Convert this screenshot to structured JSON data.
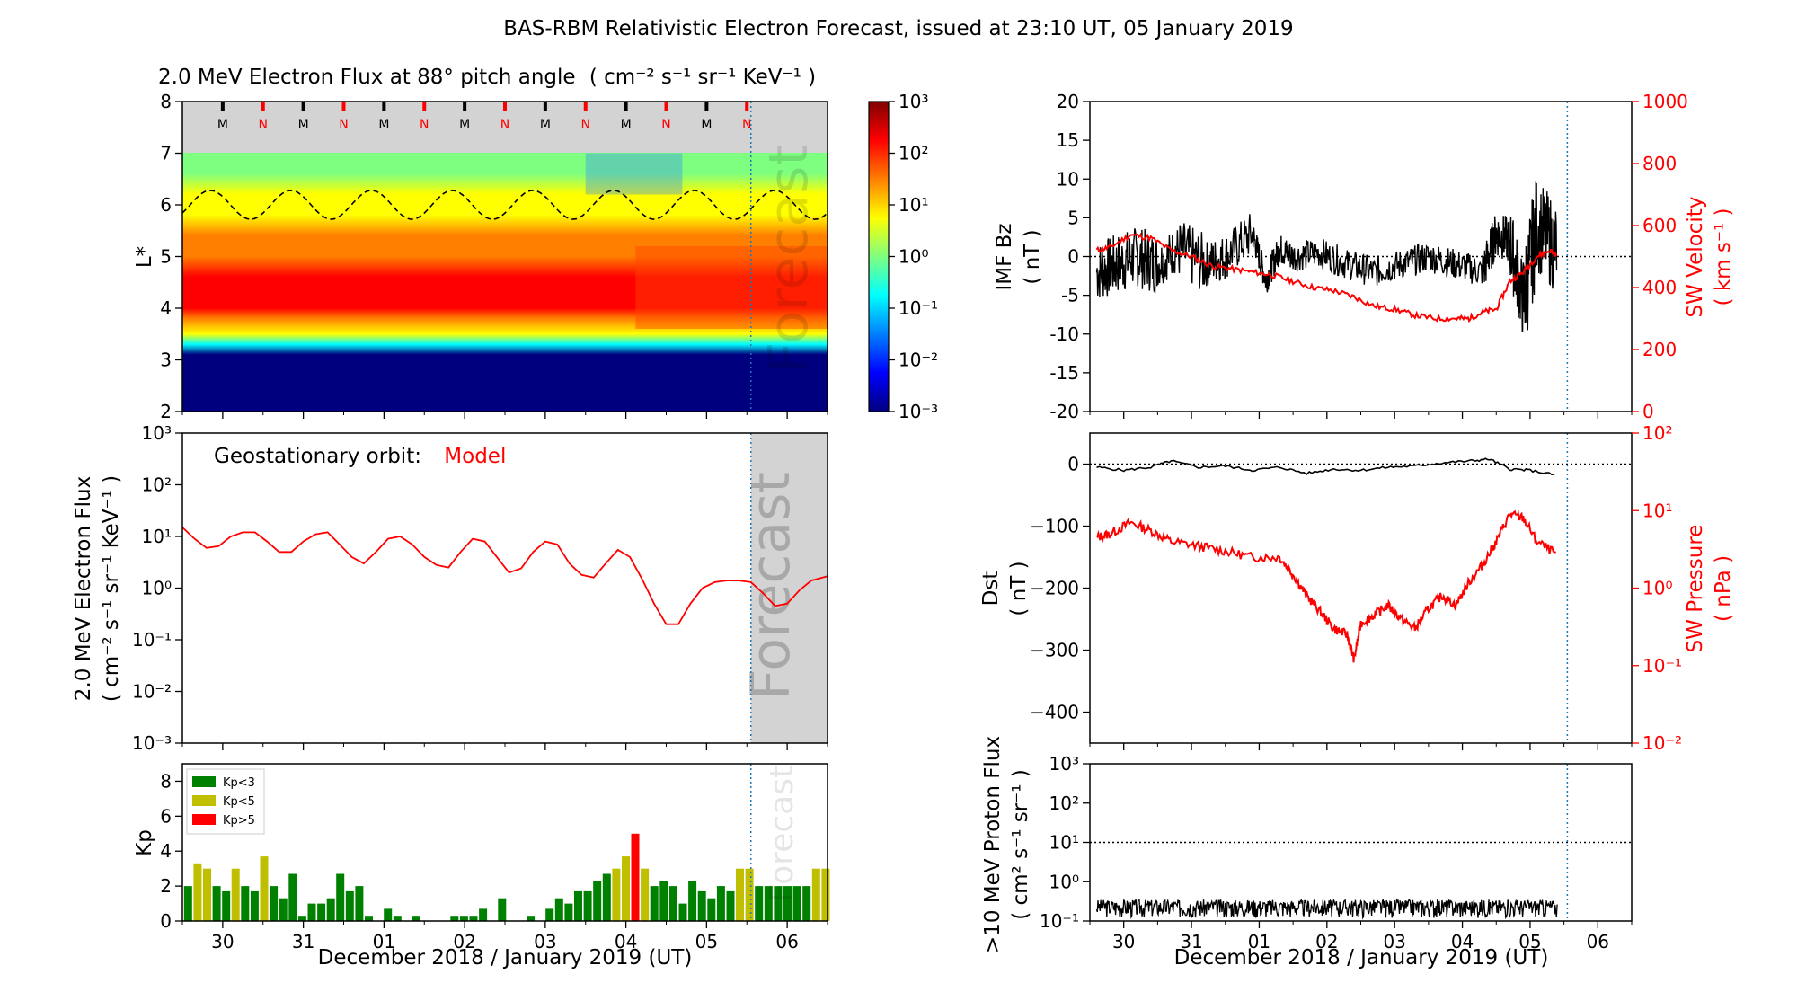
{
  "suptitle": "BAS-RBM Relativistic Electron Forecast, issued at 23:10 UT, 05 January 2019",
  "chart_data": [
    {
      "id": "flux-heatmap",
      "type": "heatmap",
      "title": "2.0 MeV Electron Flux at 88° pitch angle",
      "title_units": "( cm⁻² s⁻¹ sr⁻¹ KeV⁻¹ )",
      "ylabel": "L*",
      "ylim": [
        2,
        8
      ],
      "yticks": [
        2,
        3,
        4,
        5,
        6,
        7,
        8
      ],
      "xlim_days": [
        0,
        8
      ],
      "forecast_day": 7.05,
      "overlay_text": "Forecast",
      "orbit_marks": [
        {
          "label": "M",
          "color": "#000000",
          "day": 0.5
        },
        {
          "label": "N",
          "color": "#ff0000",
          "day": 1.0
        },
        {
          "label": "M",
          "color": "#000000",
          "day": 1.5
        },
        {
          "label": "N",
          "color": "#ff0000",
          "day": 2.0
        },
        {
          "label": "M",
          "color": "#000000",
          "day": 2.5
        },
        {
          "label": "N",
          "color": "#ff0000",
          "day": 3.0
        },
        {
          "label": "M",
          "color": "#000000",
          "day": 3.5
        },
        {
          "label": "N",
          "color": "#ff0000",
          "day": 4.0
        },
        {
          "label": "M",
          "color": "#000000",
          "day": 4.5
        },
        {
          "label": "N",
          "color": "#ff0000",
          "day": 5.0
        },
        {
          "label": "M",
          "color": "#000000",
          "day": 5.5
        },
        {
          "label": "N",
          "color": "#ff0000",
          "day": 6.0
        },
        {
          "label": "M",
          "color": "#000000",
          "day": 6.5
        },
        {
          "label": "N",
          "color": "#ff0000",
          "day": 7.0
        }
      ],
      "dashed_line": {
        "mean_L": 6.0,
        "amplitude_L": 0.28,
        "period_days": 1.0
      },
      "colorbar": {
        "type": "log",
        "range": [
          -3,
          3
        ],
        "ticks": [
          "10⁻³",
          "10⁻²",
          "10⁻¹",
          "10⁰",
          "10¹",
          "10²",
          "10³"
        ],
        "stops": [
          "#00007f",
          "#0000ff",
          "#007fff",
          "#00ffff",
          "#7fff7f",
          "#ffff00",
          "#ff7f00",
          "#ff0000",
          "#7f0000"
        ]
      }
    },
    {
      "id": "geo-flux",
      "type": "line",
      "annotation": "Geostationary orbit:",
      "annotation_model": "Model",
      "ylabel": "2.0 MeV Electron Flux",
      "ylabel_units": "( cm⁻² s⁻¹ sr⁻¹ KeV⁻¹ )",
      "yscale": "log",
      "ylim": [
        0.001,
        1000
      ],
      "yticks": [
        "10⁻³",
        "10⁻²",
        "10⁻¹",
        "10⁰",
        "10¹",
        "10²",
        "10³"
      ],
      "xlim_days": [
        0,
        8
      ],
      "forecast_day": 7.05,
      "overlay_text": "Forecast",
      "series": [
        {
          "color": "#ff0000",
          "x": [
            0,
            0.15,
            0.3,
            0.45,
            0.6,
            0.75,
            0.9,
            1.05,
            1.2,
            1.35,
            1.5,
            1.65,
            1.8,
            1.95,
            2.1,
            2.25,
            2.4,
            2.55,
            2.7,
            2.85,
            3.0,
            3.15,
            3.3,
            3.45,
            3.6,
            3.75,
            3.9,
            4.05,
            4.2,
            4.35,
            4.5,
            4.65,
            4.8,
            4.95,
            5.1,
            5.25,
            5.4,
            5.55,
            5.7,
            5.85,
            6.0,
            6.15,
            6.3,
            6.45,
            6.6,
            6.75,
            6.9,
            7.05,
            7.2,
            7.35,
            7.5,
            7.65,
            7.8,
            8.0
          ],
          "y": [
            15,
            9,
            6,
            6.5,
            10,
            12,
            12,
            8,
            5,
            5,
            8,
            11,
            12,
            7,
            4,
            3,
            5,
            9,
            10,
            7,
            4,
            2.8,
            2.5,
            5,
            9,
            8,
            4,
            2,
            2.4,
            5,
            8,
            7,
            3,
            1.8,
            1.6,
            3,
            5.5,
            4,
            1.5,
            0.5,
            0.2,
            0.2,
            0.5,
            1.0,
            1.3,
            1.4,
            1.4,
            1.3,
            0.8,
            0.45,
            0.5,
            0.9,
            1.4,
            1.7
          ]
        }
      ]
    },
    {
      "id": "kp",
      "type": "bar",
      "ylabel": "Kp",
      "ylim": [
        0,
        9
      ],
      "yticks": [
        0,
        2,
        4,
        6,
        8
      ],
      "xlim_days": [
        0,
        8
      ],
      "forecast_day": 7.05,
      "overlay_text": "Forecast",
      "bar_width_days": 0.1,
      "legend": {
        "placement": "upper-left",
        "entries": [
          {
            "label": "Kp<3",
            "color": "#008000"
          },
          {
            "label": "Kp<5",
            "color": "#bfbf00"
          },
          {
            "label": "Kp>5",
            "color": "#ff0000"
          }
        ]
      },
      "values": [
        2,
        3.3,
        3,
        2,
        1.7,
        3,
        2,
        1.7,
        3.7,
        2,
        1.3,
        2.7,
        0.3,
        1,
        1,
        1.3,
        2.7,
        1.7,
        2,
        0.3,
        0,
        0.7,
        0.3,
        0,
        0.3,
        0,
        0,
        0,
        0.3,
        0.3,
        0.3,
        0.7,
        0,
        1.3,
        0,
        0,
        0.3,
        0,
        0.7,
        1.3,
        1,
        1.7,
        1.7,
        2.3,
        2.7,
        3,
        3.7,
        5,
        3,
        2,
        2.3,
        2,
        1,
        2.3,
        1.7,
        1.3,
        2,
        1.7,
        3,
        3,
        2,
        2,
        2,
        2,
        2,
        2,
        3,
        3
      ],
      "forecast_start_index": 56
    },
    {
      "id": "imf-sw",
      "type": "line",
      "ylabel": "IMF Bz",
      "ylabel_units": "( nT )",
      "ylim": [
        -20,
        20
      ],
      "yticks": [
        -20,
        -15,
        -10,
        -5,
        0,
        5,
        10,
        15,
        20
      ],
      "y2label": "SW Velocity",
      "y2label_units": "( km s⁻¹ )",
      "y2lim": [
        0,
        1000
      ],
      "y2ticks": [
        0,
        200,
        400,
        600,
        800,
        1000
      ],
      "xlim_days": [
        0,
        8
      ],
      "forecast_day": 7.05,
      "data_end_day": 6.9,
      "series": [
        {
          "axis": "left",
          "color": "#000000",
          "x": [
            0.1,
            0.4,
            0.7,
            1.0,
            1.3,
            1.7,
            2.0,
            2.4,
            2.6,
            2.8,
            3.0,
            3.4,
            3.8,
            4.2,
            4.6,
            5.0,
            5.4,
            5.8,
            6.0,
            6.2,
            6.4,
            6.6,
            6.9
          ],
          "y": [
            -2,
            -1,
            0,
            -1,
            1,
            -1,
            0,
            3,
            -3,
            1,
            0,
            0.5,
            -1,
            -2,
            -1,
            0,
            -1,
            -2,
            3,
            2,
            -6,
            4,
            1
          ],
          "noise_amplitude": [
            4,
            4,
            4,
            3,
            4,
            3,
            3,
            2,
            2,
            2,
            2,
            2,
            2,
            2,
            2,
            2,
            2,
            3,
            3,
            5,
            7,
            6,
            3
          ]
        },
        {
          "axis": "right",
          "color": "#ff0000",
          "x": [
            0.1,
            0.3,
            0.6,
            0.9,
            1.2,
            1.5,
            1.8,
            2.1,
            2.4,
            2.7,
            3.0,
            3.3,
            3.6,
            3.9,
            4.2,
            4.5,
            4.8,
            5.1,
            5.4,
            5.6,
            5.8,
            6.0,
            6.2,
            6.4,
            6.6,
            6.8,
            6.9
          ],
          "y": [
            520,
            530,
            570,
            560,
            520,
            500,
            470,
            460,
            450,
            440,
            420,
            400,
            390,
            370,
            340,
            330,
            310,
            300,
            300,
            300,
            320,
            330,
            420,
            450,
            500,
            520,
            500
          ]
        }
      ]
    },
    {
      "id": "dst-swp",
      "type": "line",
      "ylabel": "Dst",
      "ylabel_units": "( nT )",
      "ylim": [
        -450,
        50
      ],
      "yticks": [
        -400,
        -300,
        -200,
        -100,
        0
      ],
      "y2label": "SW Pressure",
      "y2label_units": "( nPa )",
      "y2scale": "log",
      "y2lim": [
        0.01,
        100
      ],
      "y2ticks": [
        "10⁻²",
        "10⁻¹",
        "10⁰",
        "10¹",
        "10²"
      ],
      "xlim_days": [
        0,
        8
      ],
      "forecast_day": 7.05,
      "series": [
        {
          "axis": "left",
          "color": "#000000",
          "x": [
            0.1,
            0.5,
            0.9,
            1.2,
            1.6,
            2.0,
            2.4,
            2.8,
            3.2,
            3.6,
            4.0,
            4.4,
            4.8,
            5.2,
            5.6,
            5.9,
            6.2,
            6.5,
            6.9
          ],
          "y": [
            -5,
            -10,
            -5,
            5,
            -5,
            -3,
            -10,
            -5,
            -15,
            -8,
            -10,
            -5,
            -3,
            2,
            5,
            8,
            -8,
            -10,
            -18
          ]
        },
        {
          "axis": "right",
          "color": "#ff0000",
          "x": [
            0.1,
            0.3,
            0.6,
            0.9,
            1.2,
            1.6,
            2.0,
            2.4,
            2.8,
            3.0,
            3.2,
            3.4,
            3.6,
            3.8,
            3.9,
            4.0,
            4.2,
            4.4,
            4.6,
            4.8,
            5.0,
            5.2,
            5.4,
            5.6,
            5.8,
            6.0,
            6.2,
            6.4,
            6.6,
            6.9
          ],
          "y": [
            4.5,
            5,
            7,
            5.5,
            4,
            3.5,
            3,
            2.5,
            2.5,
            1.5,
            0.8,
            0.5,
            0.3,
            0.25,
            0.12,
            0.35,
            0.45,
            0.6,
            0.4,
            0.3,
            0.55,
            0.8,
            0.6,
            1.2,
            2,
            4,
            9,
            8,
            4,
            2.7
          ]
        }
      ]
    },
    {
      "id": "proton-flux",
      "type": "line",
      "ylabel": ">10 MeV Proton Flux",
      "ylabel_units": "( cm² s⁻¹ sr⁻¹ )",
      "yscale": "log",
      "ylim": [
        0.1,
        1000
      ],
      "yticks": [
        "10⁻¹",
        "10⁰",
        "10¹",
        "10²",
        "10³"
      ],
      "threshold": 10,
      "xlim_days": [
        0,
        8
      ],
      "forecast_day": 7.05,
      "series": [
        {
          "color": "#000000",
          "x": [
            0.1,
            6.9
          ],
          "y": [
            0.2,
            0.2
          ],
          "noise_range": [
            0.12,
            0.35
          ]
        }
      ]
    }
  ],
  "x_axis": {
    "tick_labels": [
      "30",
      "31",
      "01",
      "02",
      "03",
      "04",
      "05",
      "06"
    ],
    "xlabel": "December 2018 / January 2019 (UT)"
  }
}
